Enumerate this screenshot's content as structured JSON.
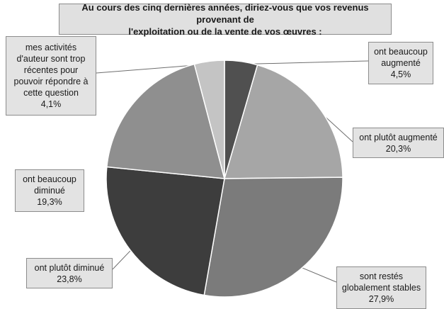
{
  "chart_data": {
    "type": "pie",
    "title_lines": [
      "Au cours des cinq dernières années, diriez-vous que vos revenus provenant de",
      "l'exploitation ou de la vente de vos œuvres :"
    ],
    "slices": [
      {
        "label_lines": [
          "ont beaucoup",
          "augmenté"
        ],
        "value_label": "4,5%",
        "value": 4.5,
        "color": "#505050"
      },
      {
        "label_lines": [
          "ont plutôt augmenté"
        ],
        "value_label": "20,3%",
        "value": 20.3,
        "color": "#a6a6a6"
      },
      {
        "label_lines": [
          "sont restés",
          "globalement stables"
        ],
        "value_label": "27,9%",
        "value": 27.9,
        "color": "#7b7b7b"
      },
      {
        "label_lines": [
          "ont plutôt diminué"
        ],
        "value_label": "23,8%",
        "value": 23.8,
        "color": "#3d3d3d"
      },
      {
        "label_lines": [
          "ont beaucoup",
          "diminué"
        ],
        "value_label": "19,3%",
        "value": 19.3,
        "color": "#8f8f8f"
      },
      {
        "label_lines": [
          "mes activités",
          "d'auteur sont trop",
          "récentes pour",
          "pouvoir répondre à",
          "cette question"
        ],
        "value_label": "4,1%",
        "value": 4.1,
        "color": "#c4c4c4"
      }
    ]
  }
}
